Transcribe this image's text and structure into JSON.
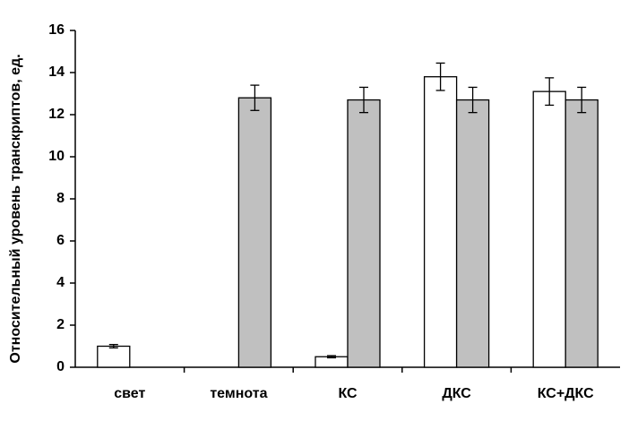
{
  "chart_data": {
    "type": "bar",
    "title": "",
    "xlabel": "",
    "ylabel": "Относительный уровень транскриптов, ед.",
    "ylim": [
      0,
      16
    ],
    "yticks": [
      0,
      2,
      4,
      6,
      8,
      10,
      12,
      14,
      16
    ],
    "grid": false,
    "legend": "none",
    "categories": [
      "свет",
      "темнота",
      "КС",
      "ДКС",
      "КС+ДКС"
    ],
    "series": [
      {
        "color": "#ffffff",
        "values": [
          1.0,
          null,
          0.5,
          13.8,
          13.1
        ],
        "errors": [
          0.08,
          null,
          0.05,
          0.65,
          0.65
        ]
      },
      {
        "color": "#c0c0c0",
        "values": [
          null,
          12.8,
          12.7,
          12.7,
          12.7
        ],
        "errors": [
          null,
          0.6,
          0.6,
          0.6,
          0.6
        ]
      }
    ]
  }
}
